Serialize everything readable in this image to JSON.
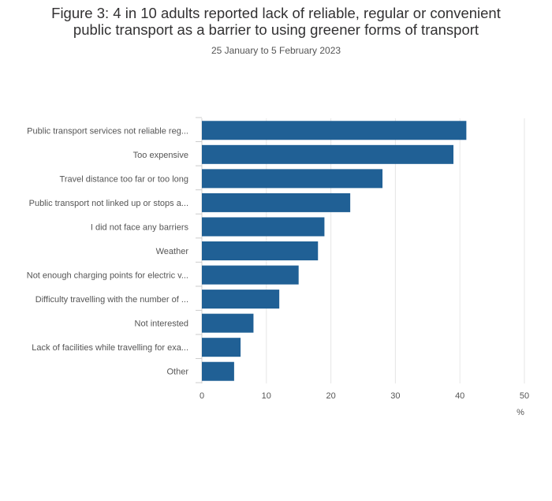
{
  "header": {
    "title_line1": "Figure 3: 4 in 10 adults reported lack of reliable, regular or convenient",
    "title_line2": "public transport as a barrier to using greener forms of transport",
    "subtitle": "25 January to 5 February 2023"
  },
  "chart_data": {
    "type": "bar",
    "orientation": "horizontal",
    "title": "Figure 3: 4 in 10 adults reported lack of reliable, regular or convenient public transport as a barrier to using greener forms of transport",
    "subtitle": "25 January to 5 February 2023",
    "categories": [
      "Public transport services not reliable reg...",
      "Too expensive",
      "Travel distance too far or too long",
      "Public transport not linked up or stops a...",
      "I did not face any barriers",
      "Weather",
      "Not enough charging points for electric v...",
      "Difficulty travelling with the number of ...",
      "Not interested",
      "Lack of facilities while travelling for exa...",
      "Other"
    ],
    "values": [
      41,
      39,
      28,
      23,
      19,
      18,
      15,
      12,
      8,
      6,
      5
    ],
    "xlabel": "%",
    "ylabel": "",
    "xlim": [
      0,
      50
    ],
    "xticks": [
      0,
      10,
      20,
      30,
      40,
      50
    ],
    "grid": true,
    "legend": "none",
    "bar_color": "#206095"
  }
}
